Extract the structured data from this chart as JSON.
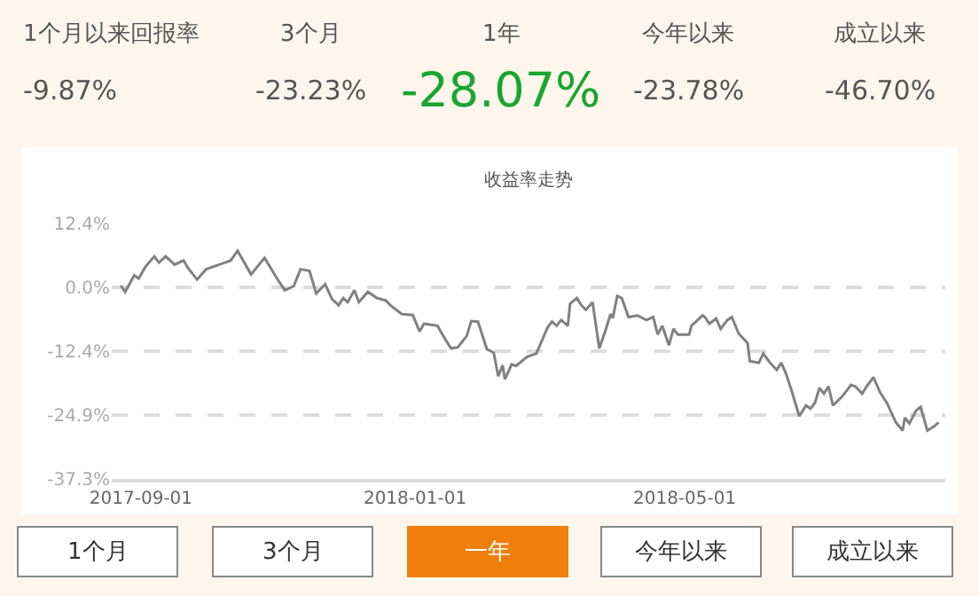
{
  "chart_data": {
    "type": "line",
    "title": "收益率走势",
    "x": [
      "2017-08-23",
      "2017-08-25",
      "2017-08-29",
      "2017-08-31",
      "2017-09-03",
      "2017-09-07",
      "2017-09-09",
      "2017-09-12",
      "2017-09-16",
      "2017-09-20",
      "2017-09-22",
      "2017-09-26",
      "2017-09-30",
      "2017-10-11",
      "2017-10-14",
      "2017-10-17",
      "2017-10-20",
      "2017-10-26",
      "2017-11-01",
      "2017-11-04",
      "2017-11-08",
      "2017-11-11",
      "2017-11-15",
      "2017-11-18",
      "2017-11-22",
      "2017-11-25",
      "2017-11-28",
      "2017-11-30",
      "2017-12-02",
      "2017-12-05",
      "2017-12-07",
      "2017-12-11",
      "2017-12-15",
      "2017-12-19",
      "2017-12-21",
      "2017-12-26",
      "2017-12-31",
      "2018-01-03",
      "2018-01-05",
      "2018-01-11",
      "2018-01-14",
      "2018-01-17",
      "2018-01-20",
      "2018-01-24",
      "2018-01-26",
      "2018-01-29",
      "2018-02-02",
      "2018-02-05",
      "2018-02-07",
      "2018-02-09",
      "2018-02-10",
      "2018-02-13",
      "2018-02-15",
      "2018-02-20",
      "2018-02-24",
      "2018-03-01",
      "2018-03-03",
      "2018-03-05",
      "2018-03-07",
      "2018-03-10",
      "2018-03-11",
      "2018-03-14",
      "2018-03-16",
      "2018-03-18",
      "2018-03-21",
      "2018-03-24",
      "2018-03-27",
      "2018-03-29",
      "2018-03-30",
      "2018-04-01",
      "2018-04-03",
      "2018-04-06",
      "2018-04-10",
      "2018-04-14",
      "2018-04-17",
      "2018-04-19",
      "2018-04-21",
      "2018-04-24",
      "2018-04-26",
      "2018-04-28",
      "2018-05-03",
      "2018-05-04",
      "2018-05-09",
      "2018-05-10",
      "2018-05-12",
      "2018-05-15",
      "2018-05-17",
      "2018-05-20",
      "2018-05-22",
      "2018-05-25",
      "2018-05-29",
      "2018-05-30",
      "2018-06-03",
      "2018-06-05",
      "2018-06-08",
      "2018-06-11",
      "2018-06-13",
      "2018-06-15",
      "2018-06-18",
      "2018-06-21",
      "2018-06-24",
      "2018-06-26",
      "2018-06-28",
      "2018-06-30",
      "2018-07-02",
      "2018-07-04",
      "2018-07-06",
      "2018-07-10",
      "2018-07-12",
      "2018-07-14",
      "2018-07-16",
      "2018-07-19",
      "2018-07-21",
      "2018-07-24",
      "2018-07-27",
      "2018-07-30",
      "2018-08-03",
      "2018-08-06",
      "2018-08-07",
      "2018-08-09",
      "2018-08-12",
      "2018-08-14",
      "2018-08-17",
      "2018-08-20",
      "2018-08-22"
    ],
    "series": [
      {
        "color": "#808080",
        "values": [
          0.3,
          -0.9,
          2.3,
          1.7,
          4.0,
          6.0,
          4.8,
          6.0,
          4.4,
          5.2,
          3.7,
          1.5,
          3.5,
          5.2,
          7.1,
          4.8,
          2.5,
          5.7,
          1.4,
          -0.6,
          0.2,
          3.5,
          3.2,
          -1.2,
          0.6,
          -2.3,
          -3.5,
          -2.1,
          -2.9,
          -0.6,
          -2.9,
          -0.9,
          -2.1,
          -2.6,
          -3.5,
          -5.2,
          -5.4,
          -8.6,
          -7.1,
          -7.5,
          -9.8,
          -11.9,
          -11.7,
          -9.5,
          -6.6,
          -6.7,
          -12.1,
          -12.7,
          -17.3,
          -15.2,
          -17.9,
          -15.0,
          -15.3,
          -13.5,
          -12.9,
          -7.8,
          -6.7,
          -7.5,
          -6.4,
          -7.5,
          -3.2,
          -2.1,
          -3.5,
          -4.4,
          -2.9,
          -11.9,
          -8.1,
          -5.2,
          -6.0,
          -1.7,
          -2.1,
          -5.8,
          -5.5,
          -6.4,
          -5.8,
          -9.2,
          -7.5,
          -11.3,
          -8.1,
          -9.2,
          -9.2,
          -7.5,
          -5.5,
          -5.8,
          -7.1,
          -6.1,
          -8.1,
          -6.4,
          -5.8,
          -9.0,
          -10.9,
          -14.4,
          -14.7,
          -12.9,
          -14.7,
          -16.1,
          -14.7,
          -16.7,
          -20.7,
          -25.1,
          -23.0,
          -23.6,
          -22.5,
          -19.6,
          -20.7,
          -19.3,
          -23.0,
          -21.3,
          -20.2,
          -19.0,
          -19.3,
          -20.7,
          -19.3,
          -17.5,
          -20.5,
          -22.5,
          -26.3,
          -27.9,
          -25.4,
          -26.5,
          -24.0,
          -23.3,
          -27.9,
          -27.1,
          -26.3
        ]
      }
    ],
    "xlim": [
      "2017-08-19",
      "2018-08-25"
    ],
    "xticks": [
      "2017-09-01",
      "2018-01-01",
      "2018-05-01"
    ],
    "ylim": [
      -37.3,
      12.4
    ],
    "yticks": [
      {
        "value": 12.4,
        "label": "12.4%"
      },
      {
        "value": 0,
        "label": "0.0%"
      },
      {
        "value": -12.4,
        "label": "-12.4%"
      },
      {
        "value": -24.9,
        "label": "-24.9%"
      },
      {
        "value": -37.3,
        "label": "-37.3%"
      }
    ],
    "grid": "y",
    "marker": "none",
    "line_style": "solid",
    "annotations": [
      "1个月以来回报率",
      "3个月",
      "1年",
      "今年以来",
      "成立以来",
      "-9.87%",
      "-23.23%",
      "-28.07%",
      "-23.78%",
      "-46.70%",
      "1个月",
      "3个月",
      "一年",
      "今年以来",
      "成立以来"
    ]
  }
}
